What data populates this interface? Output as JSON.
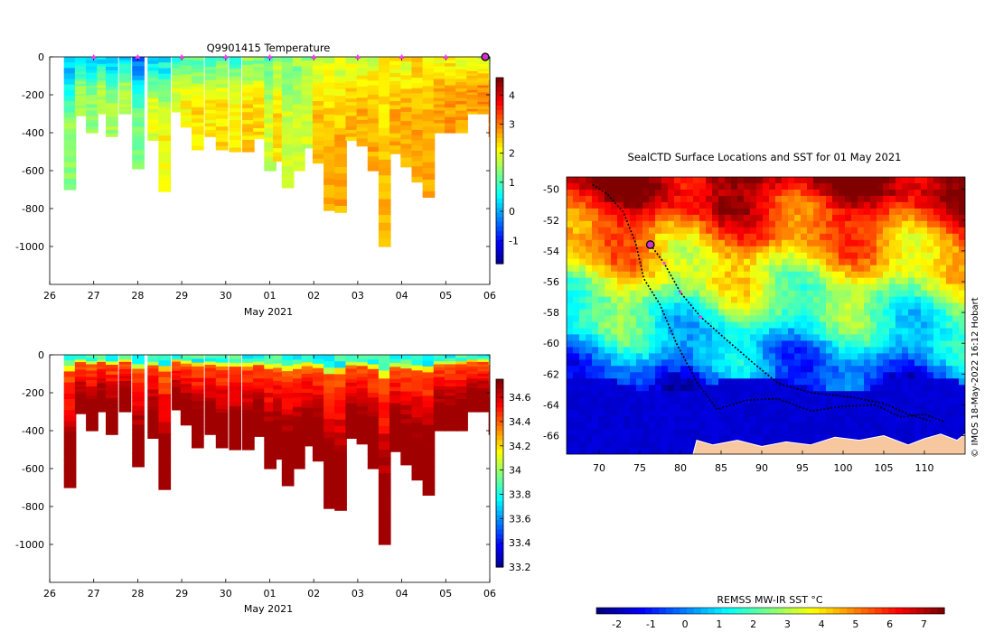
{
  "chart_data": [
    {
      "type": "heatmap",
      "title": "Q9901415  Temperature",
      "xlabel": "May 2021",
      "ylabel": "",
      "x_tick_labels": [
        "26",
        "27",
        "28",
        "29",
        "30",
        "01",
        "02",
        "03",
        "04",
        "05",
        "06"
      ],
      "x_ticks_day_offset": [
        0,
        1,
        2,
        3,
        4,
        5,
        6,
        7,
        8,
        9,
        10
      ],
      "y_tick_labels": [
        "0",
        "-200",
        "-400",
        "-600",
        "-800",
        "-1000"
      ],
      "ylim": [
        -1200,
        0
      ],
      "xlim_days": [
        0,
        10
      ],
      "colorbar_tick_labels": [
        "4",
        "3",
        "2",
        "1",
        "0",
        "-1"
      ],
      "colorbar_range": [
        -1.8,
        4.6
      ],
      "profile_markers_day_offset": [
        1,
        2,
        3,
        4,
        5,
        6,
        7,
        8,
        9
      ],
      "current_position_day_offset": 10,
      "profiles": [
        {
          "day": 0.2,
          "depth": -700,
          "surface": 0.2,
          "deep": 1.5
        },
        {
          "day": 0.45,
          "depth": -310,
          "surface": 0.5,
          "deep": 1.6
        },
        {
          "day": 0.7,
          "depth": -400,
          "surface": 0.3,
          "deep": 1.5
        },
        {
          "day": 0.95,
          "depth": -300,
          "surface": 0.6,
          "deep": 1.7
        },
        {
          "day": 1.15,
          "depth": -420,
          "surface": 0.2,
          "deep": 1.6
        },
        {
          "day": 1.45,
          "depth": -300,
          "surface": 0.5,
          "deep": 1.7
        },
        {
          "day": 1.75,
          "depth": -590,
          "surface": -0.3,
          "deep": 1.4
        },
        {
          "day": 2.1,
          "depth": -440,
          "surface": 0.4,
          "deep": 2.0
        },
        {
          "day": 2.35,
          "depth": -710,
          "surface": 0.6,
          "deep": 2.2
        },
        {
          "day": 2.65,
          "depth": -290,
          "surface": 0.8,
          "deep": 2.0
        },
        {
          "day": 2.85,
          "depth": -370,
          "surface": 1.0,
          "deep": 2.2
        },
        {
          "day": 3.1,
          "depth": -490,
          "surface": 1.2,
          "deep": 2.4
        },
        {
          "day": 3.4,
          "depth": -420,
          "surface": 1.0,
          "deep": 2.3
        },
        {
          "day": 3.65,
          "depth": -490,
          "surface": 1.3,
          "deep": 2.4
        },
        {
          "day": 3.95,
          "depth": -500,
          "surface": 1.1,
          "deep": 2.3
        },
        {
          "day": 4.25,
          "depth": -500,
          "surface": 1.4,
          "deep": 2.5
        },
        {
          "day": 4.5,
          "depth": -430,
          "surface": 1.3,
          "deep": 2.4
        },
        {
          "day": 4.75,
          "depth": -600,
          "surface": 1.2,
          "deep": 1.9
        },
        {
          "day": 4.95,
          "depth": -550,
          "surface": 1.6,
          "deep": 2.4
        },
        {
          "day": 5.15,
          "depth": -690,
          "surface": 1.4,
          "deep": 1.9
        },
        {
          "day": 5.4,
          "depth": -600,
          "surface": 1.5,
          "deep": 1.8
        },
        {
          "day": 5.6,
          "depth": -480,
          "surface": 1.6,
          "deep": 1.9
        },
        {
          "day": 5.85,
          "depth": -560,
          "surface": 1.8,
          "deep": 2.6
        },
        {
          "day": 6.1,
          "depth": -810,
          "surface": 1.9,
          "deep": 2.7
        },
        {
          "day": 6.35,
          "depth": -820,
          "surface": 2.0,
          "deep": 2.7
        },
        {
          "day": 6.6,
          "depth": -440,
          "surface": 1.9,
          "deep": 2.6
        },
        {
          "day": 6.85,
          "depth": -470,
          "surface": 2.0,
          "deep": 2.7
        },
        {
          "day": 7.1,
          "depth": -600,
          "surface": 2.1,
          "deep": 2.7
        },
        {
          "day": 7.35,
          "depth": -1000,
          "surface": 2.2,
          "deep": 2.6
        },
        {
          "day": 7.6,
          "depth": -510,
          "surface": 2.1,
          "deep": 2.7
        },
        {
          "day": 7.85,
          "depth": -580,
          "surface": 2.2,
          "deep": 2.7
        },
        {
          "day": 8.1,
          "depth": -660,
          "surface": 2.3,
          "deep": 2.7
        },
        {
          "day": 8.35,
          "depth": -740,
          "surface": 2.2,
          "deep": 2.7
        },
        {
          "day": 8.6,
          "depth": -400,
          "surface": 2.3,
          "deep": 2.8
        },
        {
          "day": 8.85,
          "depth": -400,
          "surface": 2.2,
          "deep": 2.8
        },
        {
          "day": 9.1,
          "depth": -400,
          "surface": 2.2,
          "deep": 2.8
        },
        {
          "day": 9.35,
          "depth": -300,
          "surface": 2.0,
          "deep": 2.8
        },
        {
          "day": 9.6,
          "depth": -300,
          "surface": 1.9,
          "deep": 2.9
        },
        {
          "day": 9.85,
          "depth": -420,
          "surface": 1.8,
          "deep": 3.0
        }
      ]
    },
    {
      "type": "heatmap",
      "title": "",
      "xlabel": "May 2021",
      "ylabel": "",
      "x_tick_labels": [
        "26",
        "27",
        "28",
        "29",
        "30",
        "01",
        "02",
        "03",
        "04",
        "05",
        "06"
      ],
      "y_tick_labels": [
        "0",
        "-200",
        "-400",
        "-600",
        "-800",
        "-1000"
      ],
      "ylim": [
        -1200,
        0
      ],
      "colorbar_tick_labels": [
        "34.6",
        "34.4",
        "34.2",
        "34",
        "33.8",
        "33.6",
        "33.4",
        "33.2"
      ],
      "colorbar_range": [
        33.2,
        34.75
      ],
      "variable": "salinity",
      "surface_value": 33.85,
      "deep_value": 34.7
    },
    {
      "type": "heatmap",
      "title": "SealCTD Surface Locations and SST for 01 May 2021",
      "x_tick_labels": [
        "70",
        "75",
        "80",
        "85",
        "90",
        "95",
        "100",
        "105",
        "110"
      ],
      "x_tick_values": [
        70,
        75,
        80,
        85,
        90,
        95,
        100,
        105,
        110
      ],
      "y_tick_labels": [
        "-50",
        "-52",
        "-54",
        "-56",
        "-58",
        "-60",
        "-62",
        "-64",
        "-66"
      ],
      "y_tick_values": [
        -50,
        -52,
        -54,
        -56,
        -58,
        -60,
        -62,
        -64,
        -66
      ],
      "xlim": [
        66,
        115
      ],
      "ylim": [
        -67.2,
        -49.2
      ],
      "colorbar_label": "REMSS MW-IR SST °C",
      "colorbar_tick_labels": [
        "-2",
        "-1",
        "0",
        "1",
        "2",
        "3",
        "4",
        "5",
        "6",
        "7"
      ],
      "colorbar_range": [
        -2.6,
        7.6
      ],
      "credit": "© IMOS 18-May-2022 16:12 Hobart",
      "track_points": [
        {
          "lon": 69.2,
          "lat": -49.7
        },
        {
          "lon": 71.0,
          "lat": -50.3
        },
        {
          "lon": 73.0,
          "lat": -51.5
        },
        {
          "lon": 74.5,
          "lat": -53.5
        },
        {
          "lon": 75.5,
          "lat": -55.8
        },
        {
          "lon": 77.5,
          "lat": -57.5
        },
        {
          "lon": 79.5,
          "lat": -60.0
        },
        {
          "lon": 82.0,
          "lat": -62.5
        },
        {
          "lon": 84.5,
          "lat": -64.3
        },
        {
          "lon": 88.0,
          "lat": -63.7
        },
        {
          "lon": 92.0,
          "lat": -63.6
        },
        {
          "lon": 96.0,
          "lat": -64.4
        },
        {
          "lon": 100.0,
          "lat": -64.1
        },
        {
          "lon": 104.0,
          "lat": -64.0
        },
        {
          "lon": 107.0,
          "lat": -64.8
        },
        {
          "lon": 110.0,
          "lat": -64.6
        },
        {
          "lon": 112.5,
          "lat": -65.1
        }
      ],
      "recent_track": [
        {
          "lon": 76.3,
          "lat": -53.6
        },
        {
          "lon": 78.0,
          "lat": -54.8
        },
        {
          "lon": 80.0,
          "lat": -56.7
        },
        {
          "lon": 82.5,
          "lat": -58.3
        },
        {
          "lon": 85.5,
          "lat": -59.7
        },
        {
          "lon": 89.0,
          "lat": -61.3
        },
        {
          "lon": 92.0,
          "lat": -62.6
        },
        {
          "lon": 96.0,
          "lat": -63.2
        },
        {
          "lon": 101.0,
          "lat": -63.5
        },
        {
          "lon": 105.0,
          "lat": -63.9
        },
        {
          "lon": 108.0,
          "lat": -64.6
        },
        {
          "lon": 111.0,
          "lat": -65.1
        }
      ],
      "current_location": {
        "lon": 76.3,
        "lat": -53.6
      }
    }
  ],
  "colors": {
    "profile_marker": "#ff33ff",
    "current_marker": "#cc33cc",
    "land": "#f7c7a0",
    "track": "#000000"
  }
}
